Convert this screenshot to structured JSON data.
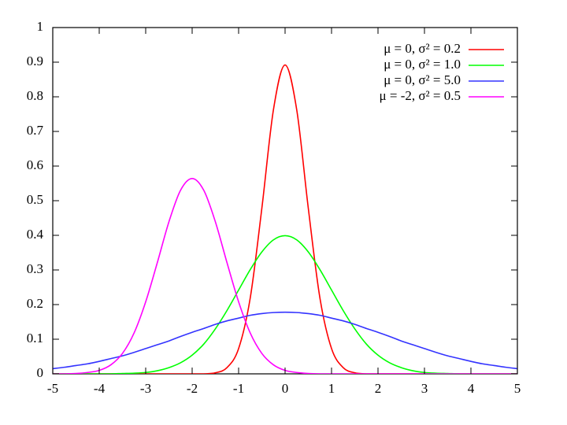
{
  "chart_data": {
    "type": "line",
    "x": [
      -5,
      -4.75,
      -4.5,
      -4.25,
      -4,
      -3.75,
      -3.5,
      -3.25,
      -3,
      -2.75,
      -2.5,
      -2.25,
      -2,
      -1.75,
      -1.5,
      -1.25,
      -1,
      -0.75,
      -0.5,
      -0.25,
      0,
      0.25,
      0.5,
      0.75,
      1,
      1.25,
      1.5,
      1.75,
      2,
      2.25,
      2.5,
      2.75,
      3,
      3.25,
      3.5,
      3.75,
      4,
      4.25,
      4.5,
      4.75,
      5
    ],
    "series": [
      {
        "name": "μ = 0, σ² = 0.2",
        "color": "#ff0000",
        "values": [
          0,
          0,
          0,
          0,
          0,
          0,
          0,
          0,
          0,
          0,
          0,
          0,
          0,
          0,
          0.003,
          0.018,
          0.073,
          0.219,
          0.478,
          0.763,
          0.892,
          0.763,
          0.478,
          0.219,
          0.073,
          0.018,
          0.003,
          0,
          0,
          0,
          0,
          0,
          0,
          0,
          0,
          0,
          0,
          0,
          0,
          0,
          0
        ]
      },
      {
        "name": "μ = 0, σ² = 1.0",
        "color": "#00ff00",
        "values": [
          0,
          0,
          0,
          0,
          0,
          0,
          0.001,
          0.002,
          0.004,
          0.009,
          0.018,
          0.032,
          0.054,
          0.086,
          0.13,
          0.183,
          0.242,
          0.301,
          0.352,
          0.387,
          0.399,
          0.387,
          0.352,
          0.301,
          0.242,
          0.183,
          0.13,
          0.086,
          0.054,
          0.032,
          0.018,
          0.009,
          0.004,
          0.002,
          0.001,
          0,
          0,
          0,
          0,
          0,
          0
        ]
      },
      {
        "name": "μ = 0, σ² = 5.0",
        "color": "#3333ff",
        "values": [
          0.015,
          0.019,
          0.024,
          0.029,
          0.036,
          0.044,
          0.052,
          0.062,
          0.073,
          0.084,
          0.095,
          0.108,
          0.12,
          0.131,
          0.143,
          0.153,
          0.161,
          0.169,
          0.174,
          0.177,
          0.178,
          0.177,
          0.174,
          0.169,
          0.161,
          0.153,
          0.143,
          0.131,
          0.12,
          0.108,
          0.095,
          0.084,
          0.073,
          0.062,
          0.052,
          0.044,
          0.036,
          0.029,
          0.024,
          0.019,
          0.015
        ]
      },
      {
        "name": "μ = -2, σ² = 0.5",
        "color": "#ff00ff",
        "values": [
          0,
          0,
          0.001,
          0.004,
          0.01,
          0.026,
          0.059,
          0.118,
          0.208,
          0.321,
          0.439,
          0.53,
          0.564,
          0.53,
          0.439,
          0.321,
          0.208,
          0.118,
          0.059,
          0.026,
          0.01,
          0.004,
          0.001,
          0,
          0,
          0,
          0,
          0,
          0,
          0,
          0,
          0,
          0,
          0,
          0,
          0,
          0,
          0,
          0,
          0,
          0
        ]
      }
    ],
    "xlim": [
      -5,
      5
    ],
    "xticks": [
      -5,
      -4,
      -3,
      -2,
      -1,
      0,
      1,
      2,
      3,
      4,
      5
    ],
    "ylim": [
      0,
      1
    ],
    "yticks": [
      0,
      0.1,
      0.2,
      0.3,
      0.4,
      0.5,
      0.6,
      0.7,
      0.8,
      0.9,
      1
    ],
    "legend": "upper-right"
  }
}
